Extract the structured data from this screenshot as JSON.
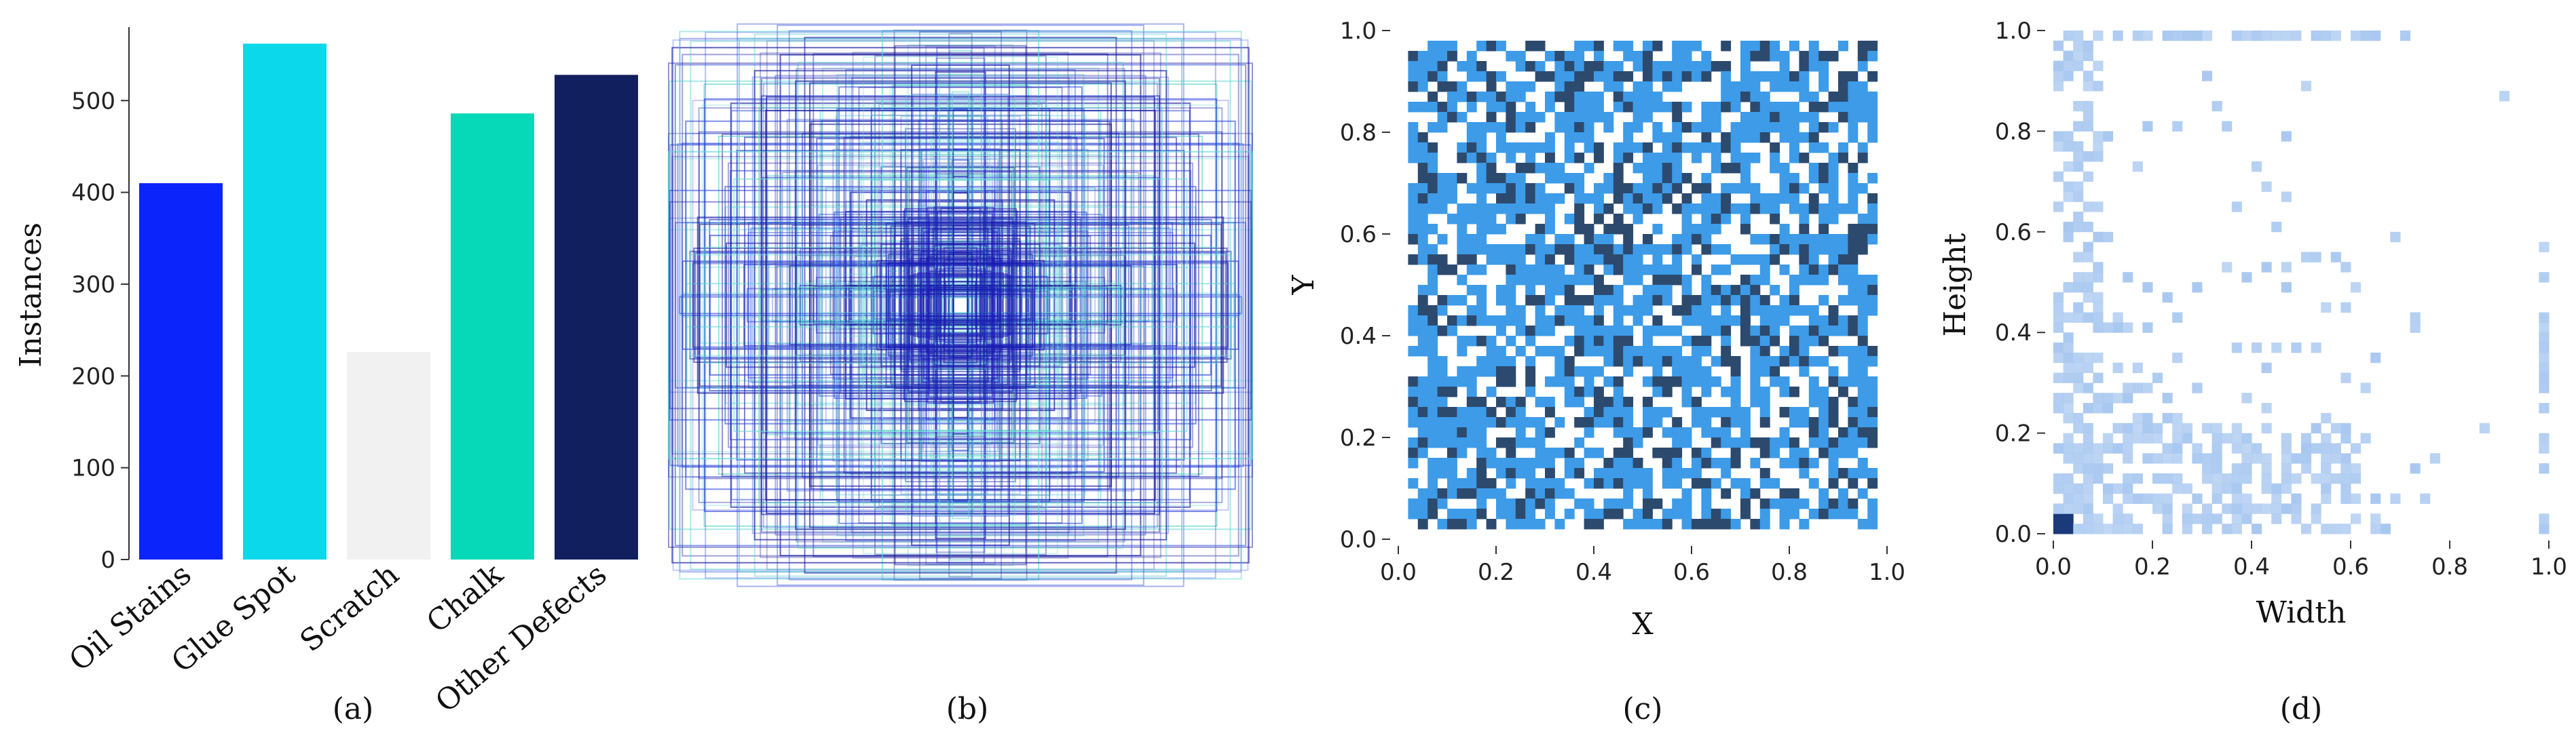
{
  "chart_data": [
    {
      "panel": "a",
      "type": "bar",
      "caption": "(a)",
      "categories": [
        "Oil Stains",
        "Glue Spot",
        "Scratch",
        "Chalk",
        "Other Defects"
      ],
      "values": [
        410,
        562,
        226,
        486,
        528
      ],
      "colors": [
        "#0b24fb",
        "#0bd8ea",
        "#f1f1f1",
        "#05d9b8",
        "#111f5e"
      ],
      "xlabel": "",
      "ylabel": "Instances",
      "ylim": [
        0,
        580
      ],
      "yticks": [
        0,
        100,
        200,
        300,
        400,
        500
      ],
      "grid": false
    },
    {
      "panel": "b",
      "type": "box-overlay",
      "caption": "(b)",
      "description_colors": [
        "#1a1a9e",
        "#5fd6d0",
        "#2c44d8"
      ]
    },
    {
      "panel": "c",
      "type": "heatmap",
      "caption": "(c)",
      "xlabel": "X",
      "ylabel": "Y",
      "xlim": [
        0,
        1
      ],
      "ylim": [
        0,
        1
      ],
      "xticks": [
        0.0,
        0.2,
        0.4,
        0.6,
        0.8,
        1.0
      ],
      "yticks": [
        0.0,
        0.2,
        0.4,
        0.6,
        0.8,
        1.0
      ],
      "tick_labels": [
        "0.0",
        "0.2",
        "0.4",
        "0.6",
        "0.8",
        "1.0"
      ],
      "bins": 50,
      "colors": [
        "#3d9be8",
        "#2c4a6e"
      ]
    },
    {
      "panel": "d",
      "type": "heatmap",
      "caption": "(d)",
      "xlabel": "Width",
      "ylabel": "Height",
      "xlim": [
        0,
        1
      ],
      "ylim": [
        0,
        1
      ],
      "xticks": [
        0.0,
        0.2,
        0.4,
        0.6,
        0.8,
        1.0
      ],
      "yticks": [
        0.0,
        0.2,
        0.4,
        0.6,
        0.8,
        1.0
      ],
      "tick_labels": [
        "0.0",
        "0.2",
        "0.4",
        "0.6",
        "0.8",
        "1.0"
      ],
      "bins": 50,
      "colors": [
        "#a9c8f0",
        "#1a3a7a"
      ]
    }
  ]
}
